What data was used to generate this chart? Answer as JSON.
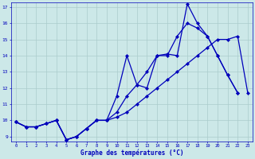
{
  "title": "Graphe des températures (°C)",
  "bg_color": "#cce8e8",
  "grid_color": "#aacccc",
  "line_color": "#0000bb",
  "x_labels": [
    "0",
    "1",
    "2",
    "3",
    "4",
    "5",
    "6",
    "7",
    "8",
    "9",
    "10",
    "11",
    "12",
    "13",
    "14",
    "15",
    "16",
    "17",
    "18",
    "19",
    "20",
    "21",
    "22",
    "23"
  ],
  "y_min": 9,
  "y_max": 17,
  "series": [
    [
      9.9,
      9.6,
      9.6,
      9.8,
      10.0,
      8.8,
      9.0,
      9.5,
      10.0,
      10.0,
      11.5,
      14.0,
      12.2,
      12.0,
      14.0,
      14.1,
      14.0,
      17.2,
      16.0,
      15.2,
      14.0,
      12.8,
      11.7,
      null
    ],
    [
      9.9,
      9.6,
      9.6,
      9.8,
      10.0,
      8.8,
      9.0,
      9.5,
      10.0,
      10.0,
      10.2,
      10.5,
      11.0,
      11.5,
      12.0,
      12.5,
      13.0,
      13.5,
      14.0,
      14.5,
      15.0,
      15.0,
      15.2,
      11.7
    ],
    [
      9.9,
      9.6,
      9.6,
      9.8,
      10.0,
      8.8,
      9.0,
      9.5,
      10.0,
      10.0,
      10.5,
      11.5,
      12.2,
      13.0,
      14.0,
      14.0,
      15.2,
      16.0,
      15.7,
      15.2,
      14.0,
      12.8,
      11.7,
      null
    ]
  ]
}
